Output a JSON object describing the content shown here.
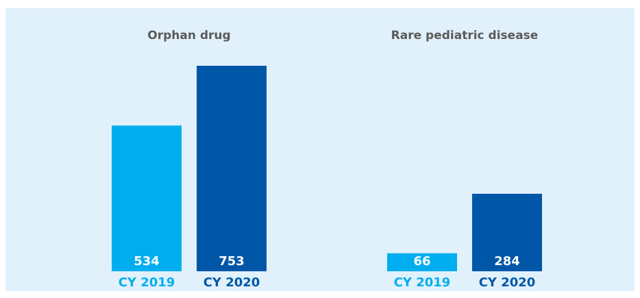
{
  "chart_data": [
    {
      "type": "bar",
      "title": "Orphan drug",
      "categories": [
        "CY 2019",
        "CY 2020"
      ],
      "values": [
        534,
        753
      ],
      "colors": [
        "#00aeef",
        "#0057a8"
      ]
    },
    {
      "type": "bar",
      "title": "Rare pediatric disease",
      "categories": [
        "CY 2019",
        "CY 2020"
      ],
      "values": [
        66,
        284
      ],
      "colors": [
        "#00aeef",
        "#0057a8"
      ]
    }
  ]
}
